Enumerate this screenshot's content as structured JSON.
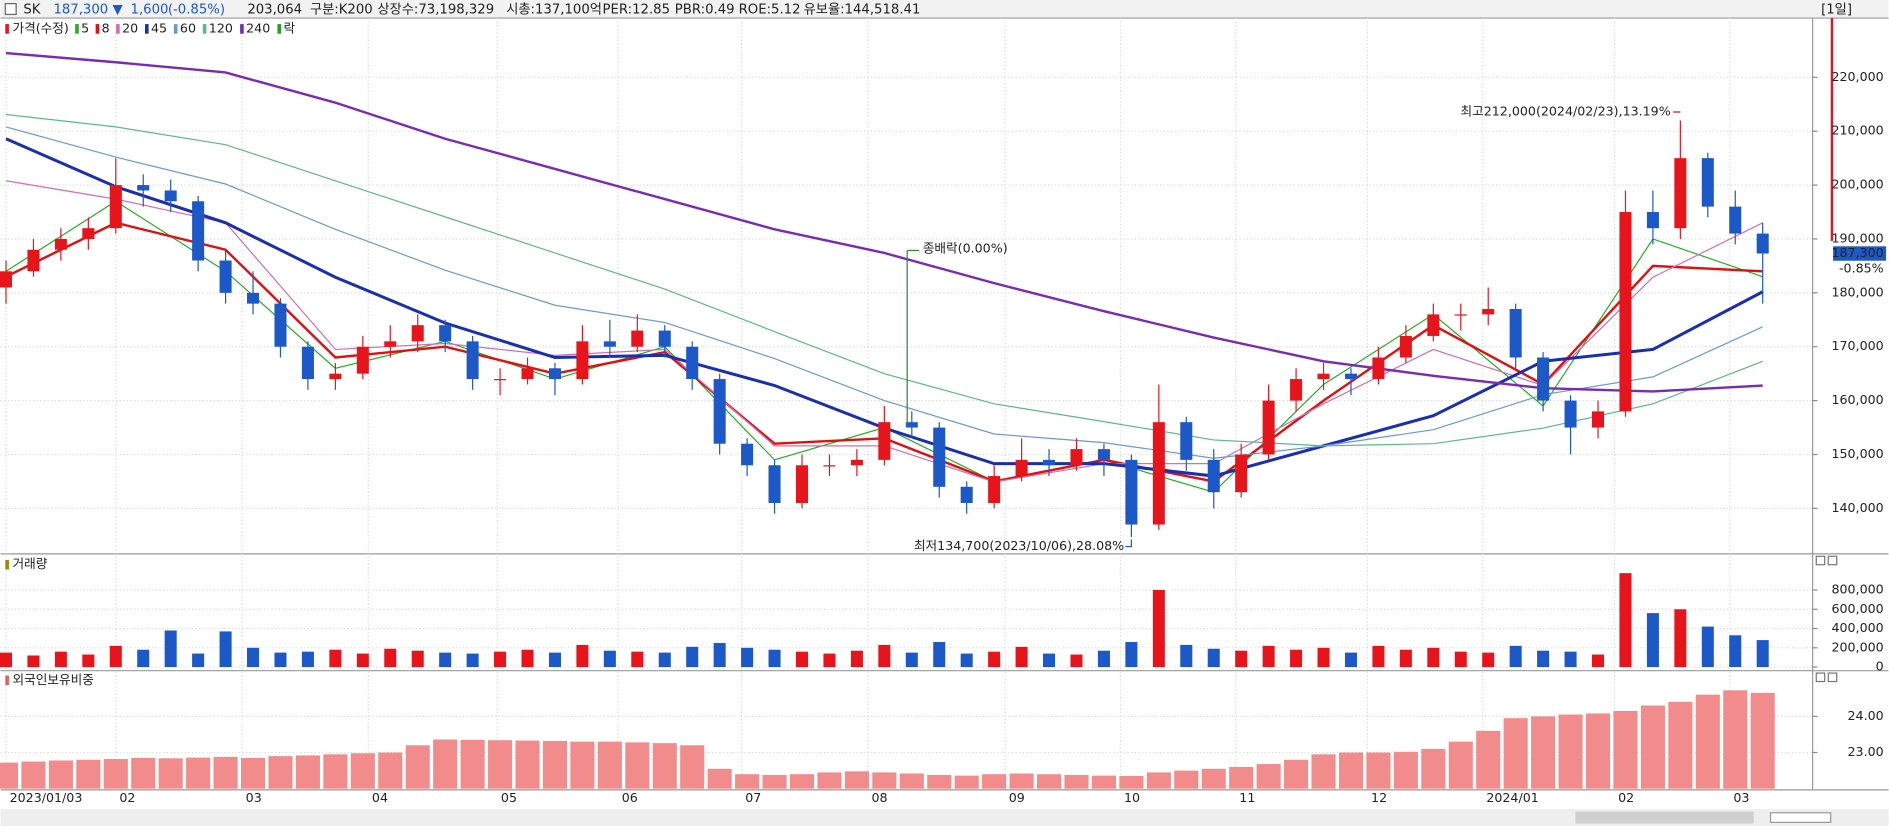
{
  "header": {
    "symbol": "SK",
    "price": "187,300",
    "arrow": "▼",
    "change": "1,600",
    "change_pct": "(-0.85%)",
    "volume": "203,064",
    "items": [
      "구분:K200",
      "상장수:73,198,329",
      "시총:137,100억",
      "PER:12.85",
      "PBR:0.49",
      "ROE:5.12",
      "유보율:144,518.41"
    ],
    "interval": "[1일]"
  },
  "chart_data": [
    {
      "type": "candlestick",
      "legend_label": "가격(수정)",
      "ex_rights_label": "락",
      "up_color": "#e8141b",
      "down_color": "#1d58c9",
      "open": [
        181000,
        184000,
        188000,
        190000,
        192000,
        200000,
        199000,
        197000,
        186000,
        180000,
        178000,
        170000,
        164000,
        165000,
        170000,
        171000,
        174000,
        171000,
        164000,
        164000,
        166000,
        164000,
        171000,
        170000,
        173000,
        170000,
        164000,
        152000,
        148000,
        141000,
        148000,
        148000,
        149000,
        156000,
        155000,
        144000,
        141000,
        146000,
        149000,
        148000,
        151000,
        149000,
        137000,
        156000,
        149000,
        143000,
        150000,
        160000,
        164000,
        165000,
        164000,
        168000,
        172000,
        176000,
        176000,
        177000,
        168000,
        160000,
        155000,
        158000,
        195000,
        192000,
        205000,
        196000,
        191000
      ],
      "high": [
        186000,
        190000,
        192000,
        194000,
        205000,
        202000,
        201000,
        198000,
        188000,
        184000,
        179000,
        171000,
        167000,
        172000,
        174000,
        176000,
        175000,
        172000,
        166000,
        168000,
        167000,
        174000,
        175000,
        176000,
        174000,
        171000,
        165000,
        153000,
        149000,
        150000,
        150000,
        151000,
        159000,
        158000,
        156000,
        145000,
        148000,
        153000,
        151000,
        153000,
        152000,
        150000,
        163000,
        157000,
        151000,
        152000,
        163000,
        166000,
        167000,
        166000,
        170000,
        174000,
        178000,
        178000,
        181000,
        178000,
        169000,
        161000,
        160000,
        199000,
        199000,
        212000,
        206000,
        199000,
        193000
      ],
      "low": [
        178000,
        183000,
        186000,
        188000,
        191000,
        196000,
        195000,
        184000,
        178000,
        176000,
        168000,
        162000,
        162000,
        164000,
        168000,
        169000,
        169000,
        162000,
        161000,
        163000,
        161000,
        163000,
        168000,
        169000,
        168000,
        162000,
        150000,
        146000,
        139000,
        140000,
        146000,
        146000,
        148000,
        153000,
        142000,
        139000,
        140000,
        145000,
        146000,
        147000,
        146000,
        134700,
        136000,
        147000,
        140000,
        142000,
        149000,
        158000,
        162000,
        161000,
        163000,
        167000,
        171000,
        173000,
        174000,
        166000,
        158000,
        150000,
        153000,
        157000,
        189000,
        190000,
        194000,
        189000,
        178000
      ],
      "close": [
        184000,
        188000,
        190000,
        192000,
        200000,
        199000,
        197000,
        186000,
        180000,
        178000,
        170000,
        164000,
        165000,
        170000,
        171000,
        174000,
        171000,
        164000,
        164000,
        166000,
        164000,
        171000,
        170000,
        173000,
        170000,
        164000,
        152000,
        148000,
        141000,
        148000,
        148000,
        149000,
        156000,
        155000,
        144000,
        141000,
        146000,
        149000,
        148000,
        151000,
        149000,
        137000,
        156000,
        149000,
        143000,
        150000,
        160000,
        164000,
        165000,
        164000,
        168000,
        172000,
        176000,
        176000,
        177000,
        168000,
        160000,
        155000,
        158000,
        195000,
        192000,
        205000,
        196000,
        191000,
        187300
      ],
      "ma_x": [
        0,
        4,
        8,
        12,
        16,
        20,
        24,
        28,
        32,
        36,
        40,
        44,
        48,
        52,
        56,
        60,
        64
      ],
      "series": [
        {
          "name": "5",
          "color": "#22b022",
          "values": [
            184000,
            197000,
            184000,
            166000,
            171000,
            164000,
            170000,
            149000,
            155000,
            145000,
            149000,
            143000,
            163000,
            176000,
            159000,
            190000,
            183000
          ]
        },
        {
          "name": "8",
          "color": "#e01010",
          "values": [
            183000,
            193000,
            188000,
            168000,
            170000,
            165000,
            169000,
            152000,
            153000,
            145000,
            149000,
            145000,
            160000,
            174000,
            163000,
            185000,
            184000
          ]
        },
        {
          "name": "20",
          "color": "#d070b0",
          "values": [
            200800,
            197400,
            193000,
            169500,
            170600,
            168400,
            169500,
            151600,
            151600,
            144900,
            148300,
            148300,
            159400,
            169500,
            162800,
            182900,
            193000
          ]
        },
        {
          "name": "45",
          "color": "#1a2fb0",
          "values": [
            208600,
            199700,
            193000,
            182900,
            174400,
            168000,
            168400,
            162800,
            154900,
            148300,
            148300,
            146000,
            151600,
            157200,
            167300,
            169500,
            180200
          ]
        },
        {
          "name": "60",
          "color": "#6a9ad0",
          "values": [
            210800,
            205200,
            200200,
            191800,
            184200,
            177700,
            174500,
            167800,
            160000,
            153800,
            152200,
            149300,
            151600,
            154600,
            161100,
            164400,
            173700
          ]
        },
        {
          "name": "120",
          "color": "#5cb88a",
          "values": [
            213100,
            210800,
            207500,
            200800,
            194100,
            187400,
            180700,
            172800,
            165000,
            159400,
            156100,
            152700,
            151600,
            152000,
            154900,
            159400,
            167300
          ]
        },
        {
          "name": "240",
          "color": "#7a2bb5",
          "values": [
            224500,
            222800,
            220900,
            215300,
            208600,
            203000,
            197400,
            191800,
            187400,
            181800,
            176600,
            171700,
            167300,
            164600,
            162300,
            161700,
            162800
          ]
        }
      ],
      "annotations": [
        {
          "text": "최고212,000(2024/02/23),13.19%",
          "color": "#c0121a"
        },
        {
          "text": "최저134,700(2023/10/06),28.08%",
          "color": "#1d58c9"
        },
        {
          "text": "종배락(0.00%)",
          "color": "#222222"
        }
      ],
      "last_label": "187,300",
      "last_change_label": "-0.85%",
      "xlim": [
        -0.2,
        65.6
      ],
      "xticks": [
        {
          "value": 0,
          "label": "2023/01/03"
        },
        {
          "value": 4,
          "label": "02"
        },
        {
          "value": 8.6,
          "label": "03"
        },
        {
          "value": 13.2,
          "label": "04"
        },
        {
          "value": 17.9,
          "label": "05"
        },
        {
          "value": 22.3,
          "label": "06"
        },
        {
          "value": 26.8,
          "label": "07"
        },
        {
          "value": 31.4,
          "label": "08"
        },
        {
          "value": 36.4,
          "label": "09"
        },
        {
          "value": 40.6,
          "label": "10"
        },
        {
          "value": 44.8,
          "label": "11"
        },
        {
          "value": 49.6,
          "label": "12"
        },
        {
          "value": 53.8,
          "label": "2024/01"
        },
        {
          "value": 58.6,
          "label": "02"
        },
        {
          "value": 62.8,
          "label": "03"
        }
      ],
      "ylim": [
        132000,
        231000
      ],
      "yticks": [
        {
          "value": 140000,
          "label": "140,000"
        },
        {
          "value": 150000,
          "label": "150,000"
        },
        {
          "value": 160000,
          "label": "160,000"
        },
        {
          "value": 170000,
          "label": "170,000"
        },
        {
          "value": 180000,
          "label": "180,000"
        },
        {
          "value": 190000,
          "label": "190,000"
        },
        {
          "value": 200000,
          "label": "200,000"
        },
        {
          "value": 210000,
          "label": "210,000"
        },
        {
          "value": 220000,
          "label": "220,000"
        }
      ],
      "grid": true
    },
    {
      "type": "bar",
      "title": "거래량",
      "title_color": "#a08a00",
      "values": [
        150000,
        120000,
        160000,
        130000,
        220000,
        180000,
        380000,
        140000,
        370000,
        200000,
        150000,
        160000,
        180000,
        140000,
        190000,
        170000,
        150000,
        140000,
        160000,
        180000,
        150000,
        230000,
        170000,
        160000,
        150000,
        210000,
        250000,
        200000,
        180000,
        160000,
        140000,
        170000,
        230000,
        150000,
        260000,
        140000,
        160000,
        210000,
        140000,
        130000,
        170000,
        260000,
        800000,
        230000,
        190000,
        170000,
        220000,
        180000,
        200000,
        150000,
        220000,
        180000,
        200000,
        160000,
        150000,
        220000,
        170000,
        160000,
        130000,
        975000,
        560000,
        600000,
        420000,
        330000,
        280000
      ],
      "ylim": [
        -25000,
        1150000
      ],
      "yticks": [
        0,
        {
          "value": 200000,
          "label": "200,000"
        },
        {
          "value": 400000,
          "label": "400,000"
        },
        {
          "value": 600000,
          "label": "600,000"
        },
        {
          "value": 800000,
          "label": "800,000"
        }
      ]
    },
    {
      "type": "bar",
      "title": "외국인보유비중",
      "title_color": "#e06060",
      "color": "#f28b8b",
      "values": [
        22.72,
        22.75,
        22.78,
        22.8,
        22.82,
        22.85,
        22.84,
        22.86,
        22.88,
        22.85,
        22.9,
        22.92,
        22.95,
        22.98,
        23.0,
        23.2,
        23.36,
        23.35,
        23.34,
        23.33,
        23.32,
        23.3,
        23.3,
        23.28,
        23.26,
        23.2,
        22.55,
        22.4,
        22.38,
        22.4,
        22.45,
        22.48,
        22.45,
        22.42,
        22.38,
        22.36,
        22.4,
        22.42,
        22.4,
        22.38,
        22.36,
        22.35,
        22.45,
        22.5,
        22.55,
        22.6,
        22.68,
        22.8,
        22.95,
        23.0,
        23.0,
        23.02,
        23.1,
        23.3,
        23.6,
        23.95,
        24.0,
        24.05,
        24.08,
        24.15,
        24.3,
        24.4,
        24.6,
        24.72,
        24.65
      ],
      "ylim": [
        22.0,
        25.23
      ],
      "yticks": [
        {
          "value": 23,
          "label": "23.00"
        },
        {
          "value": 24,
          "label": "24.00"
        }
      ]
    }
  ]
}
